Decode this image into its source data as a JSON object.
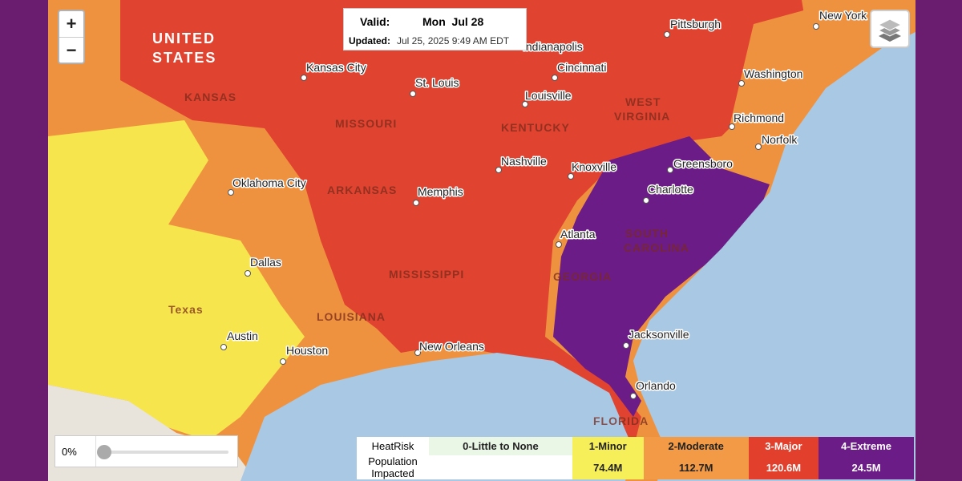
{
  "valid_box": {
    "valid_label": "Valid:",
    "valid_date": "Mon  Jul 28",
    "updated_label": "Updated:",
    "updated_value": "Jul 25, 2025 9:49 AM EDT"
  },
  "zoom": {
    "in": "+",
    "out": "−"
  },
  "slider": {
    "value_label": "0%"
  },
  "regions": [
    "UNITED",
    "STATES",
    "KANSAS",
    "MISSOURI",
    "KENTUCKY",
    "WEST",
    "VIRGINIA",
    "ARKANSAS",
    "MISSISSIPPI",
    "LOUISIANA",
    "GEORGIA",
    "SOUTH",
    "CAROLINA",
    "FLORIDA",
    "Texas"
  ],
  "cities": [
    "Pittsburgh",
    "New York",
    "Indianapolis",
    "Cincinnati",
    "Washington",
    "Kansas City",
    "St. Louis",
    "Louisville",
    "Richmond",
    "Norfolk",
    "Oklahoma City",
    "Nashville",
    "Knoxville",
    "Greensboro",
    "Charlotte",
    "Memphis",
    "Atlanta",
    "Dallas",
    "Austin",
    "Houston",
    "New Orleans",
    "Jacksonville",
    "Orlando"
  ],
  "legend": {
    "header_label": "HeatRisk",
    "row_label": "Population Impacted",
    "levels": [
      {
        "name": "0-Little to None"
      },
      {
        "name": "1-Minor",
        "population": "74.4M"
      },
      {
        "name": "2-Moderate",
        "population": "112.7M"
      },
      {
        "name": "3-Major",
        "population": "120.6M"
      },
      {
        "name": "4-Extreme",
        "population": "24.5M"
      }
    ]
  }
}
